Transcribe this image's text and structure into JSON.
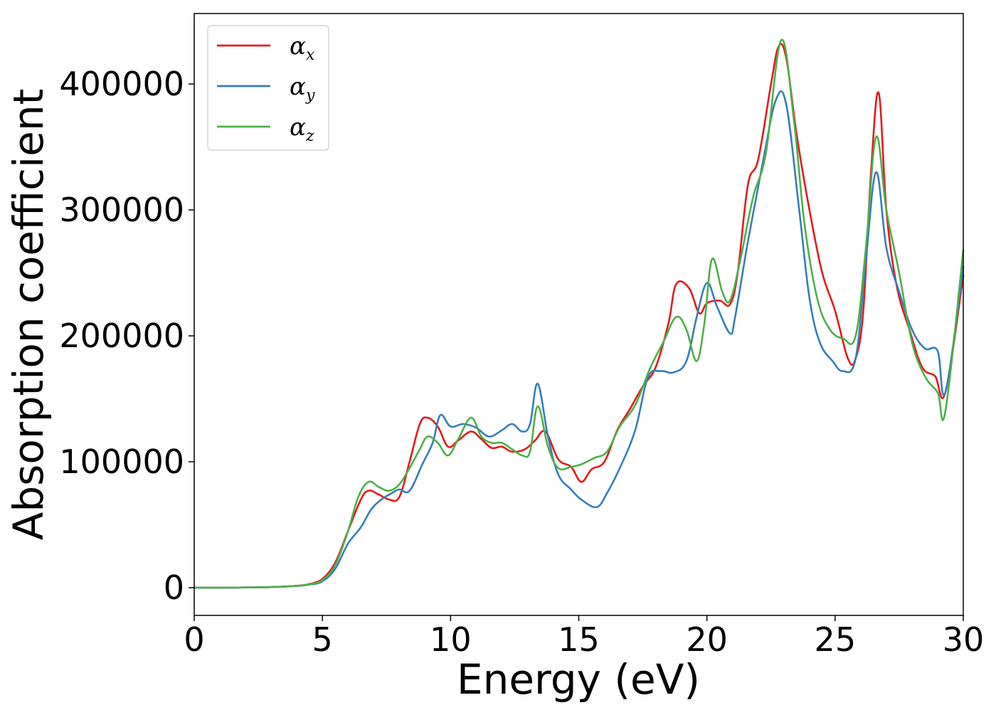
{
  "chart_data": {
    "type": "line",
    "title": "",
    "xlabel": "Energy (eV)",
    "ylabel": "Absorption coefficient",
    "xlim": [
      0,
      30
    ],
    "ylim": [
      -22000,
      456000
    ],
    "xticks": [
      0,
      5,
      10,
      15,
      20,
      25,
      30
    ],
    "xtick_labels": [
      "0",
      "5",
      "10",
      "15",
      "20",
      "25",
      "30"
    ],
    "yticks": [
      0,
      100000,
      200000,
      300000,
      400000
    ],
    "ytick_labels": [
      "0",
      "100000",
      "200000",
      "300000",
      "400000"
    ],
    "grid": false,
    "legend_position": "top-left",
    "series": [
      {
        "name": "α_x",
        "label_base": "α",
        "label_sub": "x",
        "color": "#e41a1c",
        "x": [
          0,
          1,
          2,
          3,
          4,
          4.5,
          5,
          5.5,
          6,
          6.5,
          6.8,
          7.2,
          7.6,
          8.0,
          8.4,
          8.8,
          9.1,
          9.5,
          9.9,
          10.3,
          10.8,
          11.2,
          11.6,
          12.0,
          12.4,
          12.9,
          13.3,
          13.7,
          14.2,
          14.7,
          15.1,
          15.5,
          16.0,
          16.5,
          17.0,
          17.5,
          18.0,
          18.5,
          18.8,
          19.3,
          19.7,
          20.0,
          20.5,
          20.9,
          21.2,
          21.6,
          22.0,
          22.5,
          22.8,
          23.1,
          23.5,
          24.0,
          24.5,
          25.0,
          25.5,
          25.8,
          26.1,
          26.4,
          26.7,
          27.0,
          27.4,
          27.9,
          28.4,
          28.9,
          29.3,
          30.0
        ],
        "y": [
          0,
          0,
          200,
          500,
          1500,
          3000,
          7000,
          20000,
          45000,
          70000,
          77000,
          74000,
          70000,
          72000,
          100000,
          130000,
          135000,
          128000,
          112000,
          117000,
          124000,
          118000,
          111000,
          112000,
          108000,
          110000,
          117000,
          124000,
          102000,
          96000,
          84000,
          94000,
          100000,
          125000,
          142000,
          160000,
          175000,
          210000,
          241000,
          238000,
          218000,
          226000,
          228000,
          225000,
          250000,
          320000,
          340000,
          400000,
          430000,
          420000,
          360000,
          300000,
          250000,
          220000,
          182000,
          182000,
          220000,
          330000,
          393000,
          300000,
          240000,
          205000,
          175000,
          168000,
          155000,
          248000
        ]
      },
      {
        "name": "α_y",
        "label_base": "α",
        "label_sub": "y",
        "color": "#377eb8",
        "x": [
          0,
          1,
          2,
          3,
          4,
          4.5,
          5,
          5.5,
          6,
          6.5,
          6.9,
          7.3,
          7.7,
          8.0,
          8.4,
          8.9,
          9.3,
          9.6,
          10.0,
          10.5,
          11.0,
          11.5,
          12.0,
          12.4,
          12.8,
          13.1,
          13.4,
          13.8,
          14.2,
          14.7,
          15.1,
          15.7,
          16.1,
          16.6,
          17.2,
          17.7,
          18.2,
          18.7,
          19.2,
          19.6,
          20.0,
          20.4,
          20.9,
          21.1,
          21.6,
          22.2,
          22.7,
          23.1,
          23.6,
          24.0,
          24.4,
          24.9,
          25.3,
          25.8,
          26.2,
          26.6,
          27.0,
          27.5,
          28.0,
          28.5,
          29.0,
          29.3,
          30.0
        ],
        "y": [
          0,
          0,
          200,
          500,
          1500,
          2500,
          5000,
          15000,
          35000,
          48000,
          62000,
          70000,
          75000,
          78000,
          77000,
          98000,
          115000,
          137000,
          128000,
          130000,
          127000,
          120000,
          125000,
          130000,
          124000,
          130000,
          162000,
          120000,
          90000,
          78000,
          70000,
          64000,
          75000,
          95000,
          125000,
          167000,
          172000,
          171000,
          180000,
          215000,
          242000,
          223000,
          202000,
          215000,
          275000,
          340000,
          388000,
          383000,
          300000,
          230000,
          195000,
          180000,
          172000,
          182000,
          260000,
          330000,
          270000,
          235000,
          205000,
          190000,
          188000,
          155000,
          255000
        ]
      },
      {
        "name": "α_z",
        "label_base": "α",
        "label_sub": "z",
        "color": "#4daf4a",
        "x": [
          0,
          1,
          2,
          3,
          4,
          4.5,
          5,
          5.5,
          6,
          6.4,
          6.8,
          7.2,
          7.6,
          8.0,
          8.4,
          8.8,
          9.1,
          9.5,
          9.9,
          10.3,
          10.8,
          11.2,
          11.6,
          12.0,
          12.4,
          12.8,
          13.1,
          13.4,
          13.8,
          14.2,
          14.7,
          15.1,
          15.6,
          16.1,
          16.6,
          17.2,
          17.8,
          18.3,
          18.8,
          19.2,
          19.6,
          19.9,
          20.2,
          20.6,
          20.9,
          21.3,
          21.8,
          22.3,
          22.9,
          23.4,
          23.8,
          24.3,
          24.8,
          25.3,
          25.8,
          26.2,
          26.6,
          27.0,
          27.5,
          28.0,
          28.5,
          29.0,
          29.3,
          30.0
        ],
        "y": [
          0,
          0,
          200,
          500,
          1500,
          2800,
          6000,
          18000,
          45000,
          72000,
          84000,
          80000,
          77000,
          82000,
          95000,
          110000,
          120000,
          115000,
          105000,
          118000,
          135000,
          120000,
          115000,
          115000,
          110000,
          105000,
          108000,
          144000,
          112000,
          95000,
          96000,
          98000,
          103000,
          108000,
          128000,
          145000,
          175000,
          195000,
          215000,
          205000,
          180000,
          210000,
          261000,
          235000,
          228000,
          260000,
          310000,
          345000,
          435000,
          370000,
          290000,
          230000,
          205000,
          198000,
          200000,
          270000,
          358000,
          300000,
          250000,
          195000,
          168000,
          155000,
          140000,
          268000
        ]
      }
    ]
  }
}
